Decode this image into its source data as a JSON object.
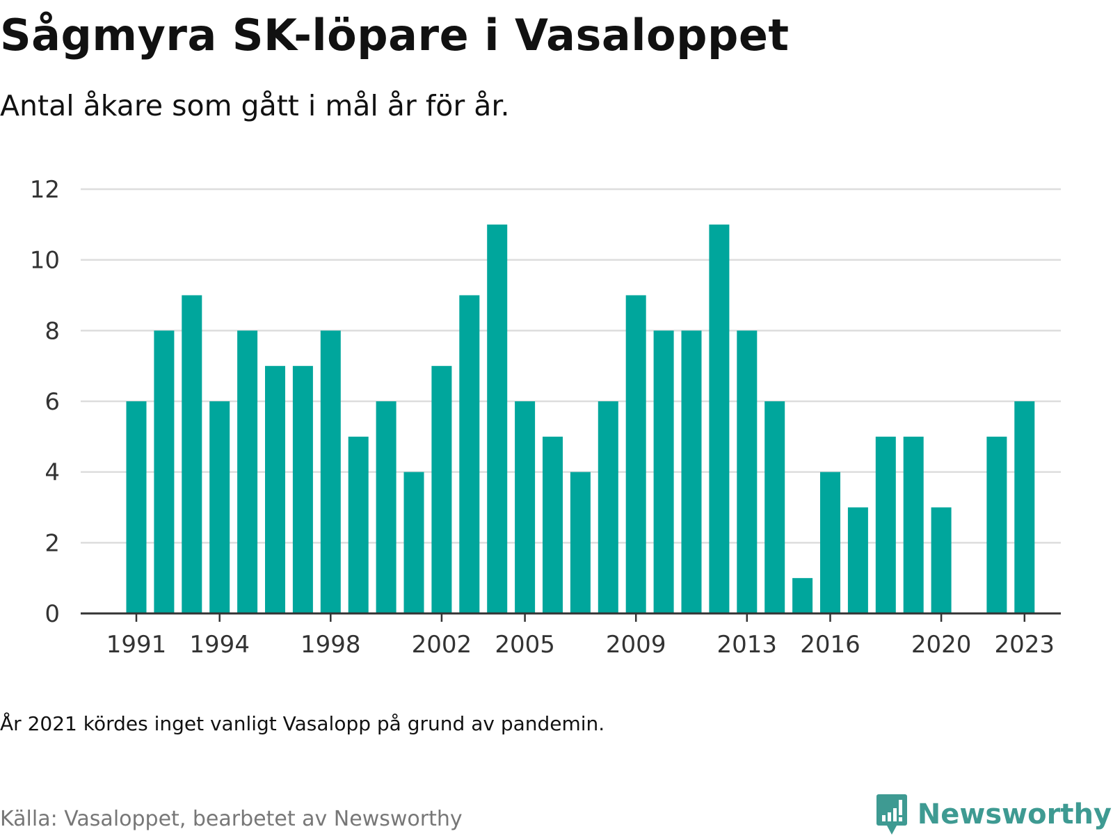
{
  "header": {
    "title": "Sågmyra SK-löpare i Vasaloppet",
    "subtitle": "Antal åkare som gått i mål år för år."
  },
  "footer": {
    "note": "År 2021 kördes inget vanligt Vasalopp på grund av pandemin.",
    "source": "Källa: Vasaloppet, bearbetet av Newsworthy",
    "brand": "Newsworthy"
  },
  "colors": {
    "bar": "#00a69c",
    "grid": "#dddddd",
    "axis": "#333333",
    "brand": "#3e9a92"
  },
  "chart_data": {
    "type": "bar",
    "title": "Sågmyra SK-löpare i Vasaloppet",
    "subtitle": "Antal åkare som gått i mål år för år.",
    "categories": [
      1991,
      1992,
      1993,
      1994,
      1995,
      1996,
      1997,
      1998,
      1999,
      2000,
      2001,
      2002,
      2003,
      2004,
      2005,
      2006,
      2007,
      2008,
      2009,
      2010,
      2011,
      2012,
      2013,
      2014,
      2015,
      2016,
      2017,
      2018,
      2019,
      2020,
      2021,
      2022,
      2023
    ],
    "values": [
      6,
      8,
      9,
      6,
      8,
      7,
      7,
      8,
      5,
      6,
      4,
      7,
      9,
      11,
      6,
      5,
      4,
      6,
      9,
      8,
      8,
      11,
      8,
      6,
      1,
      4,
      3,
      5,
      5,
      3,
      null,
      5,
      6
    ],
    "x_tick_labels": [
      "1991",
      "1994",
      "1998",
      "2002",
      "2005",
      "2009",
      "2013",
      "2016",
      "2020",
      "2023"
    ],
    "y_ticks": [
      0,
      2,
      4,
      6,
      8,
      10,
      12
    ],
    "ylim": [
      0,
      12
    ],
    "grid": true,
    "legend": "none"
  }
}
